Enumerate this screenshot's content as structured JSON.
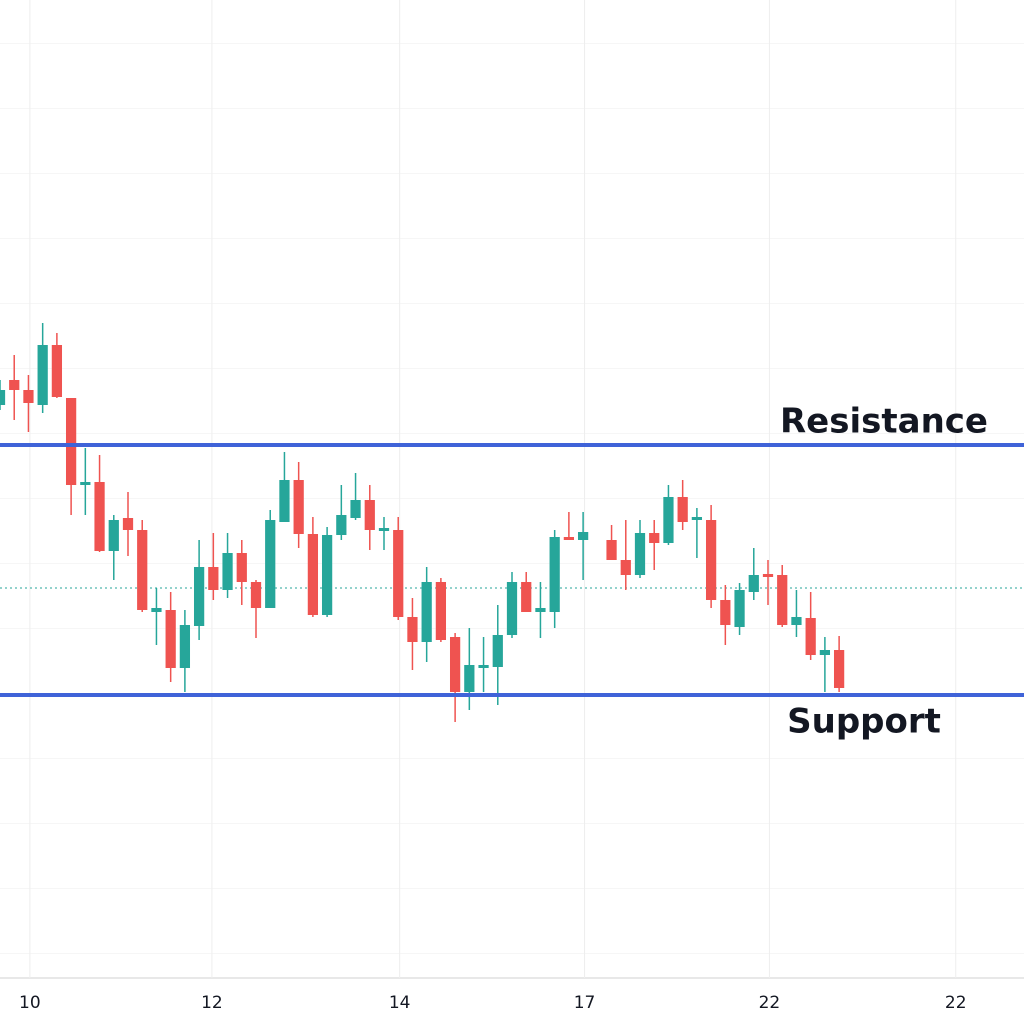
{
  "chart_data": {
    "type": "candlestick",
    "x": [
      0,
      1,
      2,
      3,
      4,
      5,
      6,
      7,
      8,
      9,
      10,
      11,
      12,
      13,
      14,
      15,
      16,
      17,
      18,
      19,
      20,
      21,
      22,
      23,
      24,
      25,
      26,
      27,
      28,
      29,
      30,
      31,
      32,
      33,
      34,
      35,
      36,
      37,
      38,
      39,
      40,
      41,
      43,
      44,
      45,
      46,
      47,
      48,
      49,
      50,
      51,
      52,
      53,
      54,
      55,
      56,
      57,
      58,
      59
    ],
    "open": [
      573,
      598,
      588,
      573,
      633,
      580,
      493,
      496,
      427,
      460,
      448,
      366,
      368,
      310,
      352,
      411,
      388,
      425,
      396,
      370,
      456,
      498,
      444,
      363,
      443,
      460,
      478,
      447,
      448,
      361,
      336,
      396,
      341,
      286,
      310,
      311,
      343,
      396,
      366,
      366,
      441,
      438,
      438,
      418,
      403,
      445,
      435,
      481,
      458,
      458,
      378,
      351,
      386,
      404,
      403,
      353,
      360,
      323,
      328
    ],
    "high": [
      598,
      623,
      603,
      655,
      645,
      580,
      530,
      523,
      463,
      486,
      458,
      390,
      386,
      368,
      438,
      445,
      445,
      438,
      398,
      468,
      526,
      516,
      461,
      451,
      493,
      505,
      493,
      461,
      461,
      380,
      411,
      400,
      345,
      350,
      341,
      373,
      406,
      406,
      396,
      448,
      466,
      466,
      453,
      458,
      458,
      458,
      493,
      498,
      470,
      473,
      393,
      395,
      430,
      418,
      413,
      388,
      386,
      341,
      342
    ],
    "low": [
      568,
      558,
      546,
      565,
      580,
      463,
      463,
      426,
      398,
      422,
      366,
      333,
      296,
      286,
      338,
      378,
      380,
      373,
      340,
      370,
      456,
      430,
      361,
      361,
      438,
      458,
      428,
      428,
      358,
      308,
      316,
      336,
      256,
      268,
      286,
      273,
      340,
      366,
      340,
      350,
      438,
      398,
      418,
      388,
      400,
      408,
      433,
      448,
      420,
      370,
      333,
      343,
      378,
      373,
      351,
      341,
      318,
      286,
      286
    ],
    "close": [
      588,
      588,
      575,
      633,
      581,
      493,
      496,
      427,
      458,
      448,
      368,
      370,
      310,
      353,
      411,
      388,
      425,
      396,
      370,
      458,
      498,
      444,
      363,
      443,
      463,
      478,
      448,
      450,
      361,
      336,
      396,
      338,
      286,
      313,
      313,
      343,
      396,
      366,
      370,
      441,
      438,
      446,
      418,
      403,
      445,
      435,
      481,
      456,
      461,
      378,
      353,
      388,
      403,
      401,
      353,
      361,
      323,
      328,
      290
    ],
    "up_color": "#26a69a",
    "down_color": "#ef5350",
    "xlim": [
      0,
      72
    ],
    "ylim": [
      0,
      978
    ],
    "xticks": [
      {
        "value": 2.1,
        "label": "10"
      },
      {
        "value": 14.9,
        "label": "12"
      },
      {
        "value": 28.1,
        "label": "14"
      },
      {
        "value": 41.1,
        "label": "17"
      },
      {
        "value": 54.1,
        "label": "22"
      },
      {
        "value": 67.2,
        "label": "22"
      }
    ],
    "grid": true,
    "levels": [
      {
        "label": "Resistance",
        "value": 533,
        "color": "#3f63d8"
      },
      {
        "label": "Support",
        "value": 283,
        "color": "#3f63d8"
      }
    ],
    "reference_line": {
      "value": 390,
      "color": "#26a69a"
    }
  }
}
